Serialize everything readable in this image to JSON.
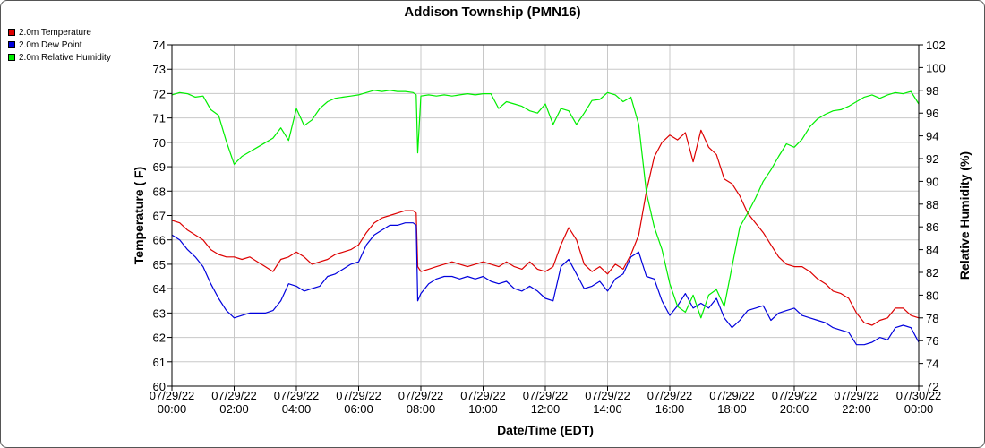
{
  "chart_data": {
    "type": "line",
    "title": "Addison Township (PMN16)",
    "xlabel": "Date/Time (EDT)",
    "ylabel": "Temperature ( F)",
    "y2label": "Relative Humidity (%)",
    "ylim": [
      60,
      74
    ],
    "y2lim": [
      72,
      102
    ],
    "xlim_hours": [
      0,
      24
    ],
    "y_ticks": [
      60,
      61,
      62,
      63,
      64,
      65,
      66,
      67,
      68,
      69,
      70,
      71,
      72,
      73,
      74
    ],
    "y2_ticks": [
      72,
      74,
      76,
      78,
      80,
      82,
      84,
      86,
      88,
      90,
      92,
      94,
      96,
      98,
      100,
      102
    ],
    "x_ticks": [
      {
        "hour": 0,
        "date": "07/29/22",
        "time": "00:00"
      },
      {
        "hour": 2,
        "date": "07/29/22",
        "time": "02:00"
      },
      {
        "hour": 4,
        "date": "07/29/22",
        "time": "04:00"
      },
      {
        "hour": 6,
        "date": "07/29/22",
        "time": "06:00"
      },
      {
        "hour": 8,
        "date": "07/29/22",
        "time": "08:00"
      },
      {
        "hour": 10,
        "date": "07/29/22",
        "time": "10:00"
      },
      {
        "hour": 12,
        "date": "07/29/22",
        "time": "12:00"
      },
      {
        "hour": 14,
        "date": "07/29/22",
        "time": "14:00"
      },
      {
        "hour": 16,
        "date": "07/29/22",
        "time": "16:00"
      },
      {
        "hour": 18,
        "date": "07/29/22",
        "time": "18:00"
      },
      {
        "hour": 20,
        "date": "07/29/22",
        "time": "20:00"
      },
      {
        "hour": 22,
        "date": "07/29/22",
        "time": "22:00"
      },
      {
        "hour": 24,
        "date": "07/30/22",
        "time": "00:00"
      }
    ],
    "grid": true,
    "legend_position": "top-left",
    "series": [
      {
        "name": "2.0m Temperature",
        "color": "#dd0000",
        "axis": "left",
        "x": [
          0,
          0.25,
          0.5,
          0.75,
          1.0,
          1.25,
          1.5,
          1.75,
          2.0,
          2.25,
          2.5,
          2.75,
          3.0,
          3.25,
          3.5,
          3.75,
          4.0,
          4.25,
          4.5,
          4.75,
          5.0,
          5.25,
          5.5,
          5.75,
          6.0,
          6.25,
          6.5,
          6.75,
          7.0,
          7.25,
          7.5,
          7.75,
          7.85,
          7.9,
          8.0,
          8.25,
          8.5,
          8.75,
          9.0,
          9.25,
          9.5,
          9.75,
          10.0,
          10.25,
          10.5,
          10.75,
          11.0,
          11.25,
          11.5,
          11.75,
          12.0,
          12.25,
          12.5,
          12.75,
          13.0,
          13.25,
          13.5,
          13.75,
          14.0,
          14.25,
          14.5,
          14.75,
          15.0,
          15.25,
          15.5,
          15.75,
          16.0,
          16.25,
          16.5,
          16.75,
          17.0,
          17.25,
          17.5,
          17.75,
          18.0,
          18.25,
          18.5,
          18.75,
          19.0,
          19.25,
          19.5,
          19.75,
          20.0,
          20.25,
          20.5,
          20.75,
          21.0,
          21.25,
          21.5,
          21.75,
          22.0,
          22.25,
          22.5,
          22.75,
          23.0,
          23.25,
          23.5,
          23.75,
          24.0
        ],
        "values": [
          66.8,
          66.7,
          66.4,
          66.2,
          66.0,
          65.6,
          65.4,
          65.3,
          65.3,
          65.2,
          65.3,
          65.1,
          64.9,
          64.7,
          65.2,
          65.3,
          65.5,
          65.3,
          65.0,
          65.1,
          65.2,
          65.4,
          65.5,
          65.6,
          65.8,
          66.3,
          66.7,
          66.9,
          67.0,
          67.1,
          67.2,
          67.2,
          67.1,
          64.9,
          64.7,
          64.8,
          64.9,
          65.0,
          65.1,
          65.0,
          64.9,
          65.0,
          65.1,
          65.0,
          64.9,
          65.1,
          64.9,
          64.8,
          65.1,
          64.8,
          64.7,
          64.9,
          65.8,
          66.5,
          66.0,
          65.0,
          64.7,
          64.9,
          64.6,
          65.0,
          64.8,
          65.4,
          66.2,
          68.0,
          69.4,
          70.0,
          70.3,
          70.1,
          70.4,
          69.2,
          70.5,
          69.8,
          69.5,
          68.5,
          68.3,
          67.8,
          67.1,
          66.7,
          66.3,
          65.8,
          65.3,
          65.0,
          64.9,
          64.9,
          64.7,
          64.4,
          64.2,
          63.9,
          63.8,
          63.6,
          63.0,
          62.6,
          62.5,
          62.7,
          62.8,
          63.2,
          63.2,
          62.9,
          62.8
        ]
      },
      {
        "name": "2.0m Dew Point",
        "color": "#0000dd",
        "axis": "left",
        "x": [
          0,
          0.25,
          0.5,
          0.75,
          1.0,
          1.25,
          1.5,
          1.75,
          2.0,
          2.25,
          2.5,
          2.75,
          3.0,
          3.25,
          3.5,
          3.75,
          4.0,
          4.25,
          4.5,
          4.75,
          5.0,
          5.25,
          5.5,
          5.75,
          6.0,
          6.25,
          6.5,
          6.75,
          7.0,
          7.25,
          7.5,
          7.75,
          7.85,
          7.9,
          8.0,
          8.25,
          8.5,
          8.75,
          9.0,
          9.25,
          9.5,
          9.75,
          10.0,
          10.25,
          10.5,
          10.75,
          11.0,
          11.25,
          11.5,
          11.75,
          12.0,
          12.25,
          12.5,
          12.75,
          13.0,
          13.25,
          13.5,
          13.75,
          14.0,
          14.25,
          14.5,
          14.75,
          15.0,
          15.25,
          15.5,
          15.75,
          16.0,
          16.25,
          16.5,
          16.75,
          17.0,
          17.25,
          17.5,
          17.75,
          18.0,
          18.25,
          18.5,
          18.75,
          19.0,
          19.25,
          19.5,
          19.75,
          20.0,
          20.25,
          20.5,
          20.75,
          21.0,
          21.25,
          21.5,
          21.75,
          22.0,
          22.25,
          22.5,
          22.75,
          23.0,
          23.25,
          23.5,
          23.75,
          24.0
        ],
        "values": [
          66.2,
          66.0,
          65.6,
          65.3,
          64.9,
          64.2,
          63.6,
          63.1,
          62.8,
          62.9,
          63.0,
          63.0,
          63.0,
          63.1,
          63.5,
          64.2,
          64.1,
          63.9,
          64.0,
          64.1,
          64.5,
          64.6,
          64.8,
          65.0,
          65.1,
          65.8,
          66.2,
          66.4,
          66.6,
          66.6,
          66.7,
          66.7,
          66.6,
          63.5,
          63.8,
          64.2,
          64.4,
          64.5,
          64.5,
          64.4,
          64.5,
          64.4,
          64.5,
          64.3,
          64.2,
          64.3,
          64.0,
          63.9,
          64.1,
          63.9,
          63.6,
          63.5,
          64.9,
          65.2,
          64.6,
          64.0,
          64.1,
          64.3,
          63.9,
          64.4,
          64.6,
          65.3,
          65.5,
          64.5,
          64.4,
          63.5,
          62.9,
          63.3,
          63.8,
          63.2,
          63.4,
          63.2,
          63.6,
          62.8,
          62.4,
          62.7,
          63.1,
          63.2,
          63.3,
          62.7,
          63.0,
          63.1,
          63.2,
          62.9,
          62.8,
          62.7,
          62.6,
          62.4,
          62.3,
          62.2,
          61.7,
          61.7,
          61.8,
          62.0,
          61.9,
          62.4,
          62.5,
          62.4,
          61.8
        ]
      },
      {
        "name": "2.0m Relative Humidity",
        "color": "#00ee00",
        "axis": "right",
        "x": [
          0,
          0.25,
          0.5,
          0.75,
          1.0,
          1.25,
          1.5,
          1.75,
          2.0,
          2.25,
          2.5,
          2.75,
          3.0,
          3.25,
          3.5,
          3.75,
          4.0,
          4.25,
          4.5,
          4.75,
          5.0,
          5.25,
          5.5,
          5.75,
          6.0,
          6.25,
          6.5,
          6.75,
          7.0,
          7.25,
          7.5,
          7.75,
          7.85,
          7.9,
          8.0,
          8.25,
          8.5,
          8.75,
          9.0,
          9.25,
          9.5,
          9.75,
          10.0,
          10.25,
          10.5,
          10.75,
          11.0,
          11.25,
          11.5,
          11.75,
          12.0,
          12.25,
          12.5,
          12.75,
          13.0,
          13.25,
          13.5,
          13.75,
          14.0,
          14.25,
          14.5,
          14.75,
          15.0,
          15.25,
          15.5,
          15.75,
          16.0,
          16.25,
          16.5,
          16.75,
          17.0,
          17.25,
          17.5,
          17.75,
          18.0,
          18.25,
          18.5,
          18.75,
          19.0,
          19.25,
          19.5,
          19.75,
          20.0,
          20.25,
          20.5,
          20.75,
          21.0,
          21.25,
          21.5,
          21.75,
          22.0,
          22.25,
          22.5,
          22.75,
          23.0,
          23.25,
          23.5,
          23.75,
          24.0
        ],
        "values": [
          97.6,
          97.8,
          97.7,
          97.4,
          97.5,
          96.3,
          95.8,
          93.5,
          91.5,
          92.2,
          92.6,
          93.0,
          93.4,
          93.8,
          94.7,
          93.6,
          96.4,
          94.9,
          95.4,
          96.4,
          97.0,
          97.3,
          97.4,
          97.5,
          97.6,
          97.8,
          98.0,
          97.9,
          98.0,
          97.9,
          97.9,
          97.8,
          97.6,
          92.5,
          97.5,
          97.6,
          97.5,
          97.6,
          97.5,
          97.6,
          97.7,
          97.6,
          97.7,
          97.7,
          96.4,
          97.0,
          96.8,
          96.6,
          96.2,
          96.0,
          96.8,
          95.0,
          96.4,
          96.2,
          95.0,
          96.0,
          97.1,
          97.2,
          97.8,
          97.6,
          97.0,
          97.4,
          95.0,
          89.0,
          86.0,
          84.0,
          81.0,
          79.0,
          78.5,
          80.0,
          78.0,
          80.0,
          80.5,
          79.0,
          82.5,
          86.0,
          87.2,
          88.5,
          90.0,
          91.0,
          92.2,
          93.3,
          93.0,
          93.7,
          94.8,
          95.5,
          95.9,
          96.2,
          96.3,
          96.6,
          97.0,
          97.4,
          97.6,
          97.3,
          97.6,
          97.8,
          97.7,
          97.9,
          96.8
        ]
      }
    ]
  }
}
